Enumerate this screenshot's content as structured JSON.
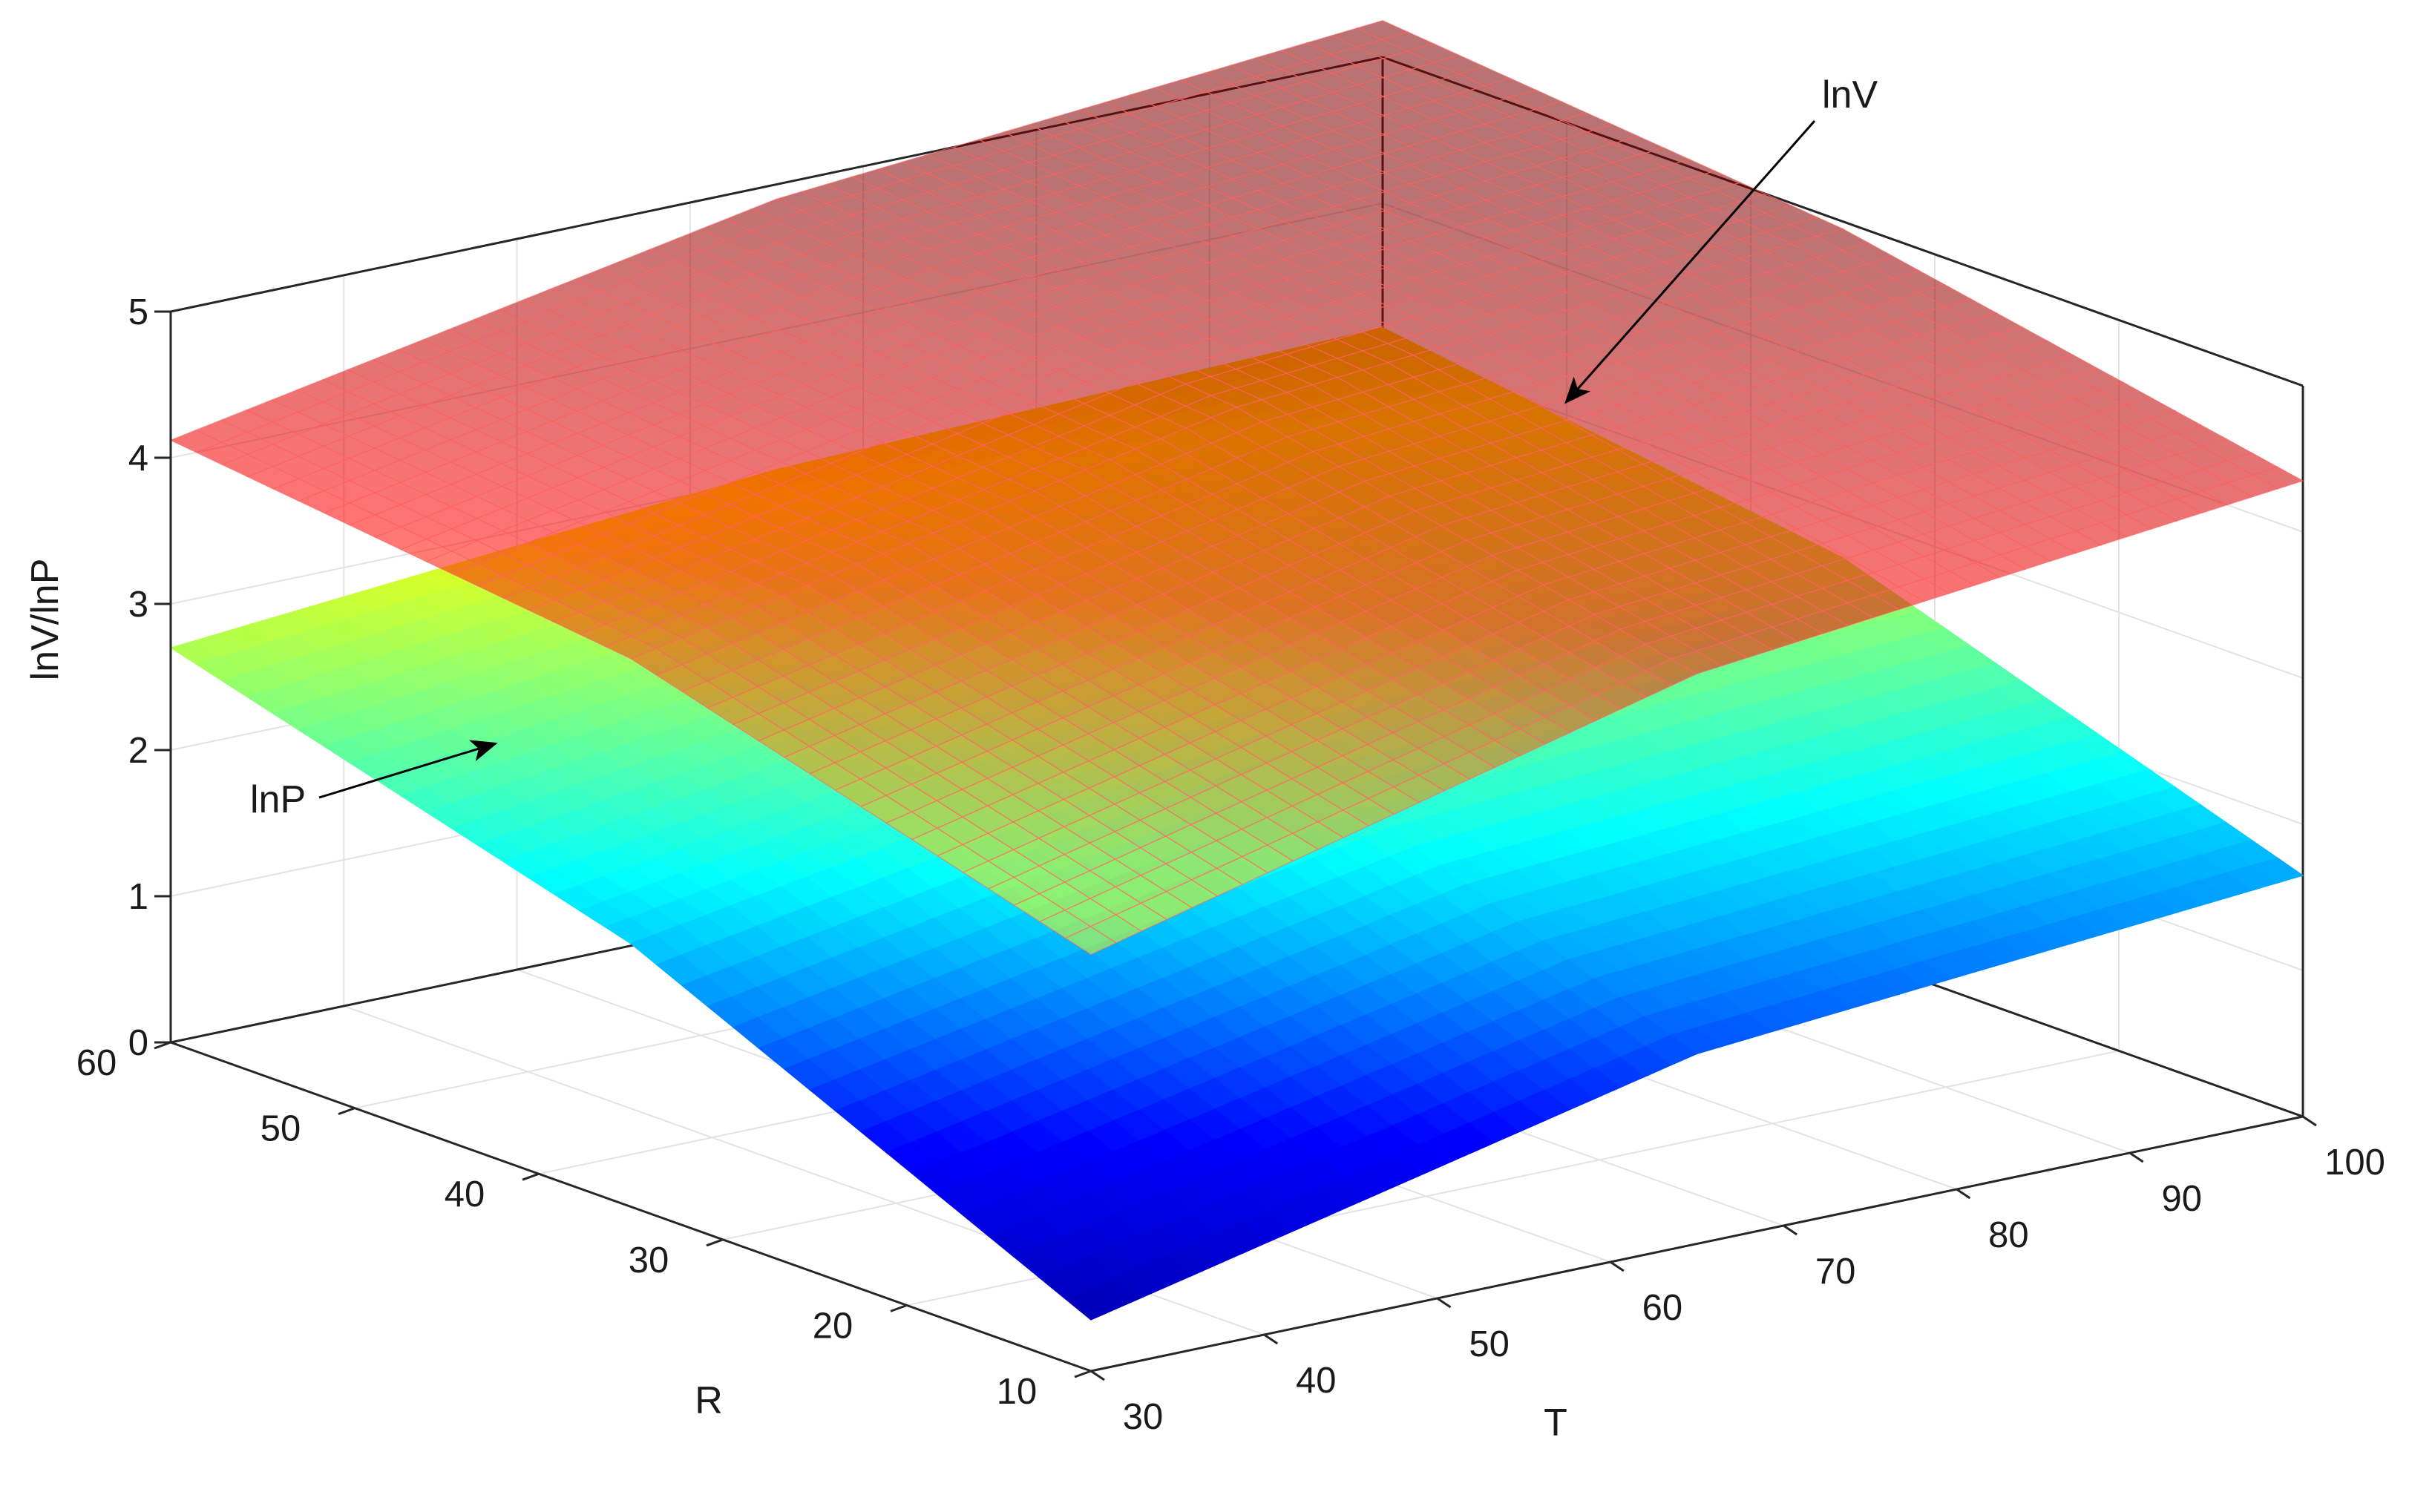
{
  "chart_data": {
    "type": "surface3d",
    "title": "",
    "xlabel": "T",
    "ylabel": "R",
    "zlabel": "lnV/lnP",
    "xlim": [
      30,
      100
    ],
    "ylim": [
      10,
      60
    ],
    "zlim": [
      0,
      5
    ],
    "xticks": [
      "30",
      "40",
      "50",
      "60",
      "70",
      "80",
      "90",
      "100"
    ],
    "yticks": [
      "10",
      "20",
      "30",
      "40",
      "50",
      "60"
    ],
    "zticks": [
      "0",
      "1",
      "2",
      "3",
      "4",
      "5"
    ],
    "grid": true,
    "colormap": [
      "#00008f",
      "#0000ff",
      "#00ffff",
      "#ffff00",
      "#ff0000",
      "#800000"
    ],
    "series": [
      {
        "name": "lnV",
        "style": "translucent mesh",
        "x": [
          30,
          65,
          100
        ],
        "y": [
          10,
          35,
          60
        ],
        "z": [
          [
            2.85,
            3.75,
            4.12
          ],
          [
            3.9,
            4.6,
            4.9
          ],
          [
            4.35,
            4.95,
            5.25
          ]
        ]
      },
      {
        "name": "lnP",
        "style": "opaque surface",
        "x": [
          30,
          65,
          100
        ],
        "y": [
          10,
          35,
          60
        ],
        "z": [
          [
            0.35,
            1.8,
            2.7
          ],
          [
            1.3,
            2.5,
            3.05
          ],
          [
            1.65,
            2.7,
            3.15
          ]
        ]
      }
    ],
    "annotations": [
      {
        "text": "lnV",
        "series": "lnV"
      },
      {
        "text": "lnP",
        "series": "lnP"
      }
    ]
  }
}
